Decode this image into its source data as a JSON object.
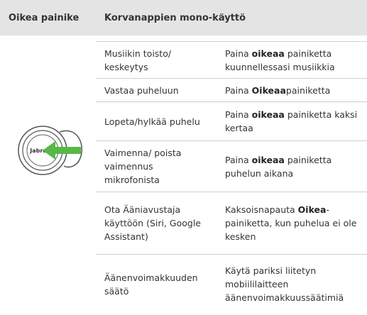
{
  "header": {
    "col1": "Oikea painike",
    "col2": "Korvanappien mono-käyttö"
  },
  "image": {
    "label": "Jabra"
  },
  "rows": [
    {
      "action": "Musiikin toisto/ keskeytys",
      "instruction": {
        "before": "Paina ",
        "bold": "oikeaa",
        "after": " painiketta kuunnellessasi musiikkia"
      }
    },
    {
      "action": "Vastaa puheluun",
      "instruction": {
        "before": "Paina ",
        "bold": "Oikeaa",
        "after": "painiketta"
      }
    },
    {
      "action": "Lopeta/hylkää puhelu",
      "instruction": {
        "before": "Paina ",
        "bold": "oikeaa",
        "after": " painiketta kaksi kertaa"
      }
    },
    {
      "action": "Vaimenna/ poista vaimennus mikrofonista",
      "instruction": {
        "before": "Paina ",
        "bold": "oikeaa",
        "after": " painiketta puhelun aikana"
      }
    },
    {
      "action": "Ota Ääniavustaja käyttöön (Siri, Google Assistant)",
      "instruction": {
        "before": "Kaksoisnapauta ",
        "bold": "Oikea",
        "after": "-painiketta, kun puhelua ei ole kesken"
      }
    },
    {
      "action": "Äänenvoimakkuuden säätö",
      "instruction": {
        "before": "Käytä pariksi liitetyn mobiililaitteen äänenvoimakkuussäätimiä"
      }
    }
  ]
}
